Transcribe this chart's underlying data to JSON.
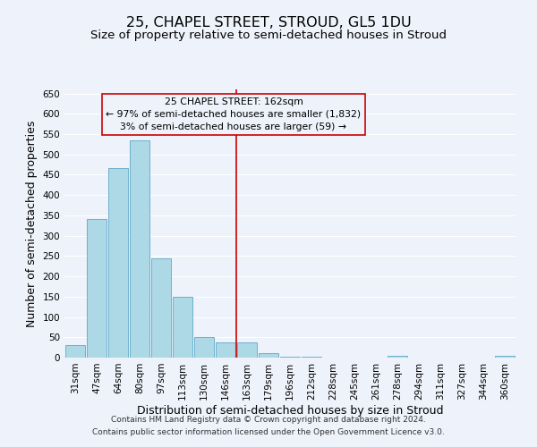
{
  "title": "25, CHAPEL STREET, STROUD, GL5 1DU",
  "subtitle": "Size of property relative to semi-detached houses in Stroud",
  "xlabel": "Distribution of semi-detached houses by size in Stroud",
  "ylabel": "Number of semi-detached properties",
  "bar_labels": [
    "31sqm",
    "47sqm",
    "64sqm",
    "80sqm",
    "97sqm",
    "113sqm",
    "130sqm",
    "146sqm",
    "163sqm",
    "179sqm",
    "196sqm",
    "212sqm",
    "228sqm",
    "245sqm",
    "261sqm",
    "278sqm",
    "294sqm",
    "311sqm",
    "327sqm",
    "344sqm",
    "360sqm"
  ],
  "bar_values": [
    30,
    340,
    467,
    535,
    245,
    150,
    50,
    38,
    37,
    12,
    3,
    2,
    0,
    0,
    0,
    4,
    0,
    0,
    0,
    0,
    4
  ],
  "bar_color": "#add8e6",
  "bar_edge_color": "#5fa8c8",
  "highlight_line_index": 8,
  "highlight_line_color": "#cc0000",
  "annotation_box_title": "25 CHAPEL STREET: 162sqm",
  "annotation_line1": "← 97% of semi-detached houses are smaller (1,832)",
  "annotation_line2": "3% of semi-detached houses are larger (59) →",
  "annotation_box_edge_color": "#cc0000",
  "ylim": [
    0,
    660
  ],
  "yticks": [
    0,
    50,
    100,
    150,
    200,
    250,
    300,
    350,
    400,
    450,
    500,
    550,
    600,
    650
  ],
  "footer_line1": "Contains HM Land Registry data © Crown copyright and database right 2024.",
  "footer_line2": "Contains public sector information licensed under the Open Government Licence v3.0.",
  "background_color": "#eef2fb",
  "grid_color": "#ffffff",
  "title_fontsize": 11.5,
  "subtitle_fontsize": 9.5,
  "axis_label_fontsize": 9,
  "tick_fontsize": 7.5,
  "footer_fontsize": 6.5
}
